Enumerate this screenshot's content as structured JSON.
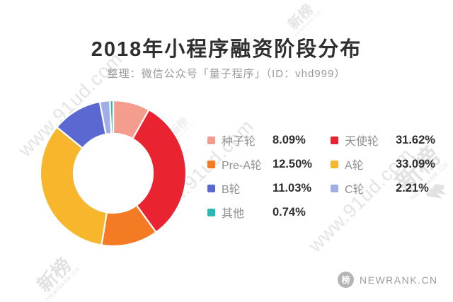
{
  "page": {
    "title": "2018年小程序融资阶段分布",
    "subtitle": "整理：微信公众号「量子程序」（ID：vhd999）"
  },
  "chart_data": {
    "type": "pie",
    "donut": true,
    "title": "2018年小程序融资阶段分布",
    "legend_position": "right",
    "start_angle_deg": 0,
    "direction": "clockwise",
    "slices": [
      {
        "label": "种子轮",
        "value": 8.09,
        "pct_label": "8.09%",
        "color": "#F49C8D"
      },
      {
        "label": "天使轮",
        "value": 31.62,
        "pct_label": "31.62%",
        "color": "#E92430"
      },
      {
        "label": "Pre-A轮",
        "value": 12.5,
        "pct_label": "12.50%",
        "color": "#F47A24"
      },
      {
        "label": "A轮",
        "value": 33.09,
        "pct_label": "33.09%",
        "color": "#F8B62D"
      },
      {
        "label": "B轮",
        "value": 11.03,
        "pct_label": "11.03%",
        "color": "#5B68D1"
      },
      {
        "label": "C轮",
        "value": 2.21,
        "pct_label": "2.21%",
        "color": "#9FAFE5"
      },
      {
        "label": "其他",
        "value": 0.74,
        "pct_label": "0.74%",
        "color": "#2AB8B4"
      }
    ]
  },
  "watermarks": {
    "site_text": "www.91ud.com",
    "brand_zh": "新榜",
    "brand_en": "NEWRANK.CN"
  },
  "footer": {
    "brand": "NEWRANK.CN",
    "icon_glyph": "榜"
  }
}
